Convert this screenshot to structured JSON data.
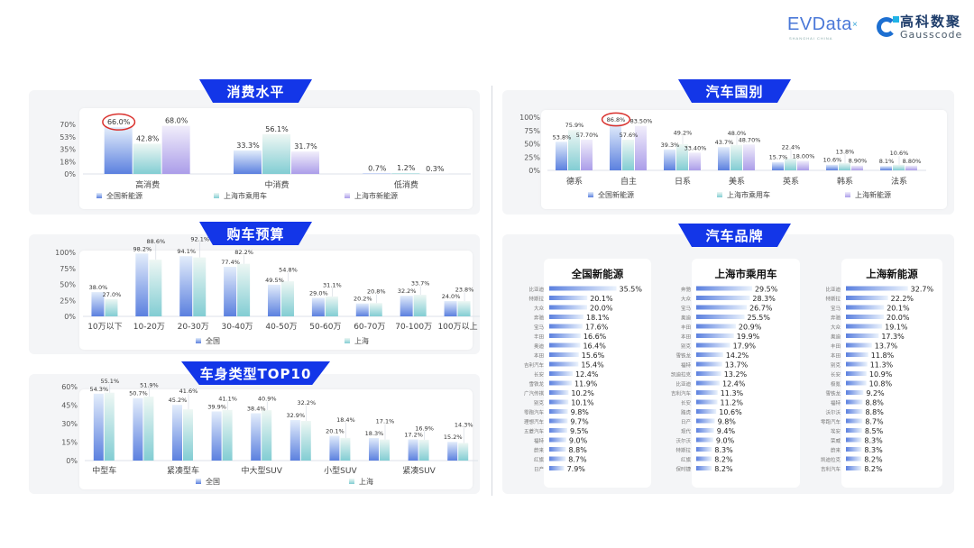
{
  "logos": {
    "evdata": "EVData",
    "evdata_sub": "SHANGHAI CHINA",
    "gauss_cn": "高科数聚",
    "gauss_en": "Gausscode"
  },
  "colors": {
    "banner": "#1336e8",
    "series_blue": "#5b80df",
    "series_teal": "#82cdd3",
    "series_purple": "#ab9de9",
    "highlight_circle": "#d9302c"
  },
  "chart_data": [
    {
      "id": "consumption",
      "type": "bar",
      "title": "消费水平",
      "categories": [
        "高消费",
        "中消费",
        "低消费"
      ],
      "yticks": [
        "0%",
        "18%",
        "35%",
        "53%",
        "70%"
      ],
      "ylim": [
        0,
        70
      ],
      "legend": "bottom",
      "series": [
        {
          "name": "全国新能源",
          "values": [
            66.0,
            33.3,
            0.7
          ],
          "labels": [
            "66.0%",
            "33.3%",
            "0.7%"
          ]
        },
        {
          "name": "上海市乘用车",
          "values": [
            42.8,
            56.1,
            1.2
          ],
          "labels": [
            "42.8%",
            "56.1%",
            "1.2%"
          ]
        },
        {
          "name": "上海市新能源",
          "values": [
            68.0,
            31.7,
            0.3
          ],
          "labels": [
            "68.0%",
            "31.7%",
            "0.3%"
          ]
        }
      ],
      "highlight": {
        "series": 0,
        "category": 0
      }
    },
    {
      "id": "budget",
      "type": "bar",
      "title": "购车预算",
      "categories": [
        "10万以下",
        "10-20万",
        "20-30万",
        "30-40万",
        "40-50万",
        "50-60万",
        "60-70万",
        "70-100万",
        "100万以上"
      ],
      "yticks": [
        "0%",
        "25%",
        "50%",
        "75%",
        "100%"
      ],
      "ylim": [
        0,
        100
      ],
      "legend": "bottom",
      "series": [
        {
          "name": "全国",
          "values": [
            38.0,
            98.2,
            94.1,
            77.4,
            49.5,
            29.0,
            20.2,
            32.2,
            24.0
          ],
          "labels": [
            "38.0%",
            "98.2%",
            "94.1%",
            "77.4%",
            "49.5%",
            "29.0%",
            "20.2%",
            "32.2%",
            "24.0%"
          ]
        },
        {
          "name": "上海",
          "values": [
            27.0,
            88.6,
            92.1,
            82.2,
            54.8,
            31.1,
            20.8,
            33.7,
            23.8
          ],
          "labels": [
            "27.0%",
            "88.6%",
            "92.1%",
            "82.2%",
            "54.8%",
            "31.1%",
            "20.8%",
            "33.7%",
            "23.8%"
          ]
        }
      ]
    },
    {
      "id": "body_type",
      "type": "bar",
      "title": "车身类型TOP10",
      "categories": [
        "中型车",
        "",
        "紧凑型车",
        "",
        "中大型SUV",
        "",
        "小型SUV",
        "",
        "紧凑SUV",
        ""
      ],
      "yticks": [
        "0%",
        "15%",
        "30%",
        "45%",
        "60%"
      ],
      "ylim": [
        0,
        60
      ],
      "legend": "bottom",
      "series": [
        {
          "name": "全国",
          "values": [
            54.3,
            50.7,
            45.2,
            39.9,
            38.4,
            32.9,
            20.1,
            18.3,
            17.2,
            15.2
          ],
          "labels": [
            "54.3%",
            "50.7%",
            "45.2%",
            "39.9%",
            "38.4%",
            "32.9%",
            "20.1%",
            "18.3%",
            "17.2%",
            "15.2%"
          ]
        },
        {
          "name": "上海",
          "values": [
            55.1,
            51.9,
            41.6,
            41.1,
            40.9,
            32.2,
            18.4,
            17.1,
            16.9,
            14.3
          ],
          "labels": [
            "55.1%",
            "51.9%",
            "41.6%",
            "41.1%",
            "40.9%",
            "32.2%",
            "18.4%",
            "17.1%",
            "16.9%",
            "14.3%"
          ]
        }
      ]
    },
    {
      "id": "country",
      "type": "bar",
      "title": "汽车国别",
      "categories": [
        "德系",
        "自主",
        "日系",
        "美系",
        "英系",
        "韩系",
        "法系"
      ],
      "yticks": [
        "0%",
        "25%",
        "50%",
        "75%",
        "100%"
      ],
      "ylim": [
        0,
        100
      ],
      "legend": "bottom",
      "series": [
        {
          "name": "全国新能源",
          "values": [
            53.8,
            86.8,
            39.3,
            43.7,
            15.7,
            10.6,
            8.1
          ],
          "labels": [
            "53.8%",
            "86.8%",
            "39.3%",
            "43.7%",
            "15.7%",
            "10.6%",
            "8.1%"
          ]
        },
        {
          "name": "上海市乘用车",
          "values": [
            75.9,
            57.6,
            49.2,
            48.0,
            22.4,
            13.8,
            10.6
          ],
          "labels": [
            "75.9%",
            "57.6%",
            "49.2%",
            "48.0%",
            "22.4%",
            "13.8%",
            "10.6%"
          ]
        },
        {
          "name": "上海新能源",
          "values": [
            57.7,
            83.5,
            33.4,
            48.7,
            18.0,
            8.9,
            8.8
          ],
          "labels": [
            "57.70%",
            "83.50%",
            "33.40%",
            "48.70%",
            "18.00%",
            "8.90%",
            "8.80%"
          ]
        }
      ],
      "highlight": {
        "series": 0,
        "category": 1
      }
    },
    {
      "id": "brands",
      "type": "bar",
      "title": "汽车品牌",
      "orientation": "horizontal",
      "lists": [
        {
          "title": "全国新能源",
          "brands": [
            "比亚迪",
            "特斯拉",
            "大众",
            "奔驰",
            "宝马",
            "丰田",
            "奥迪",
            "本田",
            "吉利汽车",
            "长安",
            "雪铁龙",
            "广汽传祺",
            "别克",
            "零跑汽车",
            "理想汽车",
            "五菱汽车",
            "福特",
            "蔚来",
            "红旗",
            "日产"
          ],
          "values": [
            35.5,
            20.1,
            20.0,
            18.1,
            17.6,
            16.6,
            16.4,
            15.6,
            15.4,
            12.4,
            11.9,
            10.2,
            10.1,
            9.8,
            9.7,
            9.5,
            9.0,
            8.8,
            8.7,
            7.9
          ],
          "labels": [
            "35.5%",
            "20.1%",
            "20.0%",
            "18.1%",
            "17.6%",
            "16.6%",
            "16.4%",
            "15.6%",
            "15.4%",
            "12.4%",
            "11.9%",
            "10.2%",
            "10.1%",
            "9.8%",
            "9.7%",
            "9.5%",
            "9.0%",
            "8.8%",
            "8.7%",
            "7.9%"
          ]
        },
        {
          "title": "上海市乘用车",
          "brands": [
            "奔驰",
            "大众",
            "宝马",
            "奥迪",
            "丰田",
            "本田",
            "别克",
            "雪铁龙",
            "福特",
            "凯迪拉克",
            "比亚迪",
            "吉利汽车",
            "长安",
            "路虎",
            "日产",
            "现代",
            "沃尔沃",
            "特斯拉",
            "红旗",
            "保时捷"
          ],
          "values": [
            29.5,
            28.3,
            26.7,
            25.5,
            20.9,
            19.9,
            17.9,
            14.2,
            13.7,
            13.2,
            12.4,
            11.3,
            11.2,
            10.6,
            9.8,
            9.4,
            9.0,
            8.3,
            8.2,
            8.2
          ],
          "labels": [
            "29.5%",
            "28.3%",
            "26.7%",
            "25.5%",
            "20.9%",
            "19.9%",
            "17.9%",
            "14.2%",
            "13.7%",
            "13.2%",
            "12.4%",
            "11.3%",
            "11.2%",
            "10.6%",
            "9.8%",
            "9.4%",
            "9.0%",
            "8.3%",
            "8.2%",
            "8.2%"
          ]
        },
        {
          "title": "上海新能源",
          "brands": [
            "比亚迪",
            "特斯拉",
            "宝马",
            "奔驰",
            "大众",
            "奥迪",
            "丰田",
            "本田",
            "别克",
            "长安",
            "极氪",
            "雪铁龙",
            "福特",
            "沃尔沃",
            "零跑汽车",
            "埃安",
            "荣威",
            "蔚来",
            "凯迪拉克",
            "吉利汽车"
          ],
          "values": [
            32.7,
            22.2,
            20.1,
            20.0,
            19.1,
            17.3,
            13.7,
            11.8,
            11.3,
            10.9,
            10.8,
            9.2,
            8.8,
            8.8,
            8.7,
            8.5,
            8.3,
            8.3,
            8.2,
            8.2
          ],
          "labels": [
            "32.7%",
            "22.2%",
            "20.1%",
            "20.0%",
            "19.1%",
            "17.3%",
            "13.7%",
            "11.8%",
            "11.3%",
            "10.9%",
            "10.8%",
            "9.2%",
            "8.8%",
            "8.8%",
            "8.7%",
            "8.5%",
            "8.3%",
            "8.3%",
            "8.2%",
            "8.2%"
          ]
        }
      ]
    }
  ]
}
